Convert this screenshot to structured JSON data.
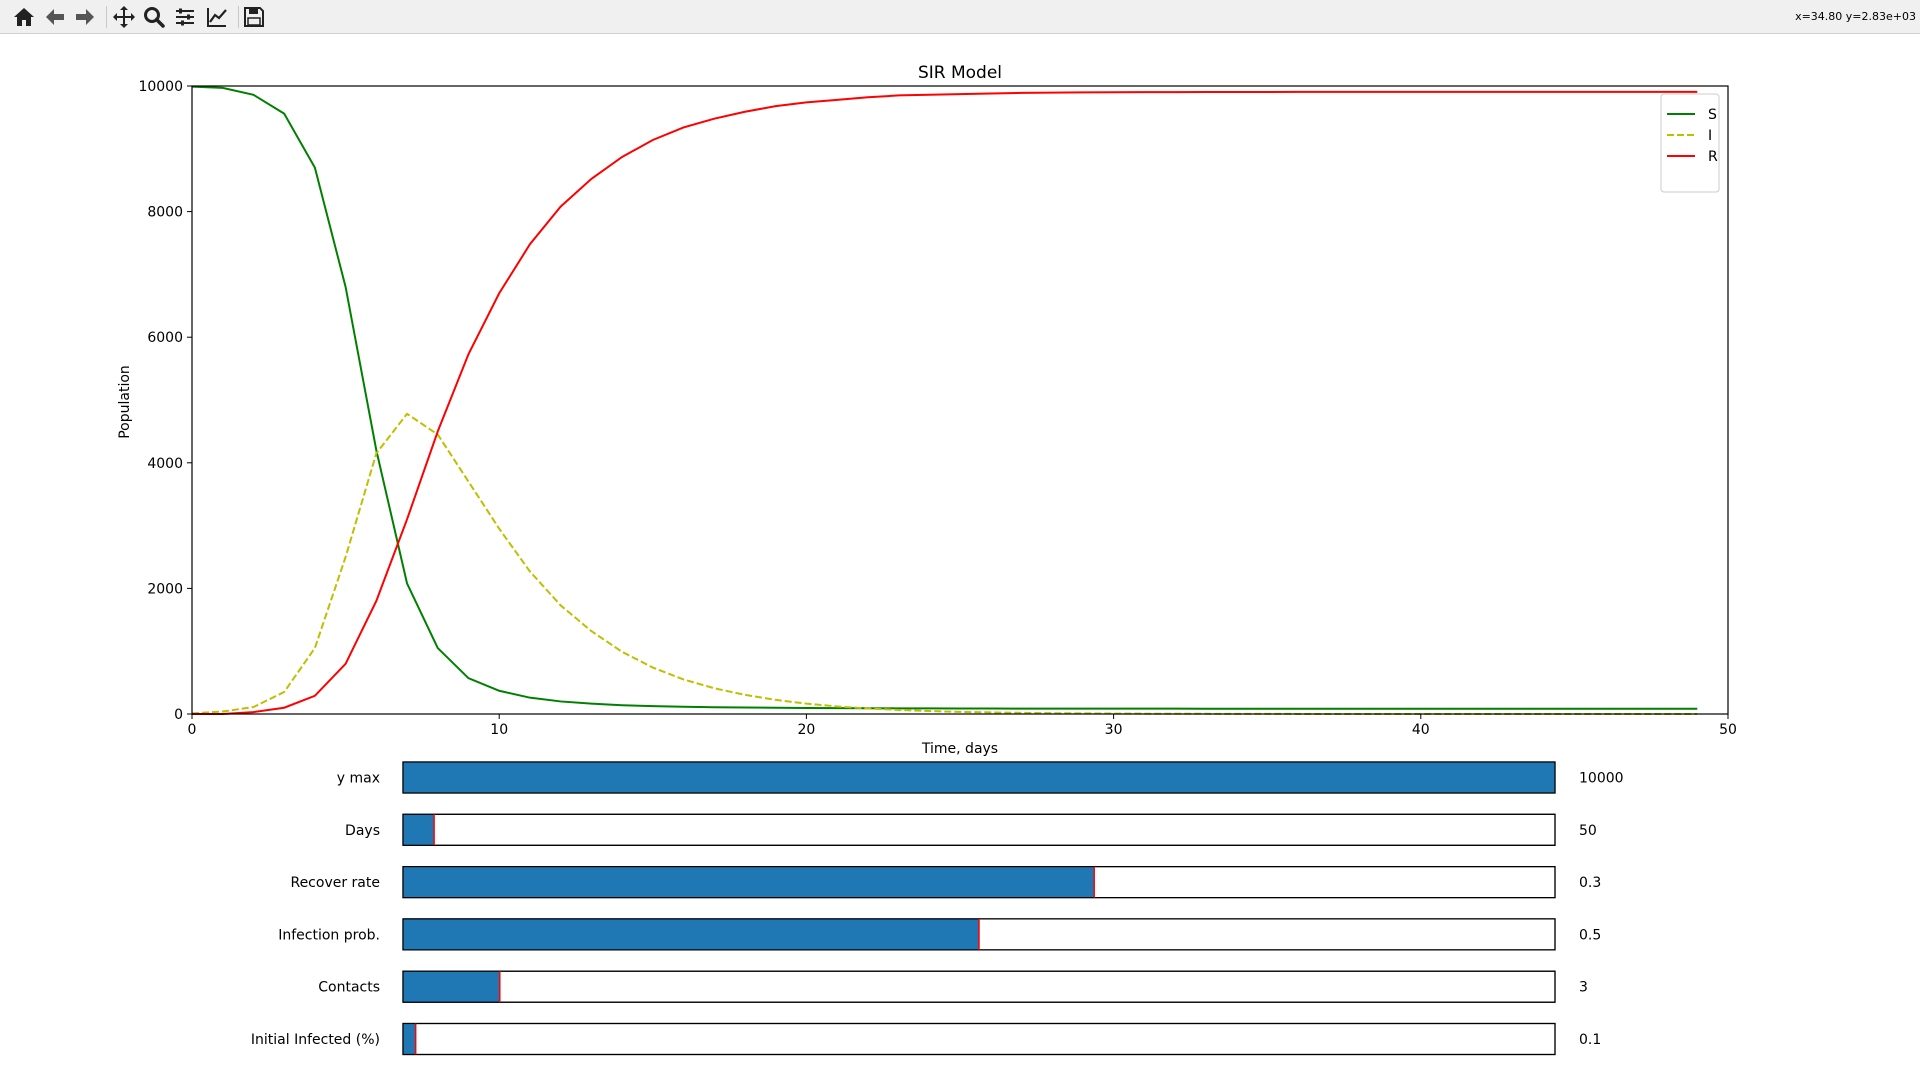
{
  "toolbar": {
    "buttons": [
      {
        "icon": "home-icon"
      },
      {
        "icon": "arrow-left-icon"
      },
      {
        "icon": "arrow-right-icon"
      },
      {
        "icon": "move-icon"
      },
      {
        "icon": "zoom-icon"
      },
      {
        "icon": "sliders-icon"
      },
      {
        "icon": "line-chart-icon"
      },
      {
        "icon": "save-icon"
      }
    ],
    "coord_readout": "x=34.80 y=2.83e+03"
  },
  "colors": {
    "S": "#008000",
    "I": "#bfbf00",
    "R": "#ff0000",
    "slider_fill": "#1f77b4",
    "slider_marker": "#ff0000"
  },
  "chart_data": {
    "type": "line",
    "title": "SIR Model",
    "xlabel": "Time, days",
    "ylabel": "Population",
    "xlim": [
      0,
      50
    ],
    "ylim": [
      0,
      10000
    ],
    "xticks": [
      0,
      10,
      20,
      30,
      40,
      50
    ],
    "yticks": [
      0,
      2000,
      4000,
      6000,
      8000,
      10000
    ],
    "legend": "top-right",
    "grid": false,
    "x": [
      0,
      1,
      2,
      3,
      4,
      5,
      6,
      7,
      8,
      9,
      10,
      11,
      12,
      13,
      14,
      15,
      16,
      17,
      18,
      19,
      20,
      21,
      22,
      23,
      24,
      25,
      26,
      27,
      28,
      29,
      30,
      31,
      32,
      33,
      34,
      35,
      36,
      37,
      38,
      39,
      40,
      41,
      42,
      43,
      44,
      45,
      46,
      47,
      48,
      49
    ],
    "series": [
      {
        "name": "S",
        "style": "solid",
        "values": [
          9990,
          9970,
          9860,
          9560,
          8700,
          6800,
          4200,
          2080,
          1050,
          570,
          370,
          260,
          200,
          165,
          140,
          125,
          115,
          108,
          103,
          99,
          96,
          94,
          92,
          90,
          89,
          88,
          87,
          86,
          86,
          85,
          85,
          85,
          85,
          84,
          84,
          84,
          84,
          84,
          84,
          84,
          84,
          84,
          84,
          84,
          84,
          84,
          84,
          84,
          84,
          84
        ]
      },
      {
        "name": "I",
        "style": "dashed",
        "values": [
          10,
          40,
          110,
          350,
          1050,
          2500,
          4150,
          4780,
          4450,
          3700,
          2950,
          2270,
          1730,
          1320,
          990,
          740,
          550,
          410,
          305,
          225,
          165,
          120,
          88,
          64,
          47,
          34,
          25,
          18,
          13,
          10,
          7,
          5,
          4,
          3,
          2,
          2,
          1,
          1,
          1,
          1,
          0,
          0,
          0,
          0,
          0,
          0,
          0,
          0,
          0,
          0
        ]
      },
      {
        "name": "R",
        "style": "solid",
        "values": [
          0,
          0,
          30,
          100,
          290,
          800,
          1800,
          3100,
          4500,
          5730,
          6700,
          7480,
          8080,
          8520,
          8870,
          9140,
          9340,
          9480,
          9590,
          9680,
          9740,
          9780,
          9820,
          9850,
          9860,
          9870,
          9880,
          9890,
          9895,
          9898,
          9900,
          9902,
          9903,
          9904,
          9905,
          9905,
          9906,
          9906,
          9906,
          9906,
          9906,
          9906,
          9906,
          9906,
          9906,
          9906,
          9906,
          9906,
          9906,
          9906
        ]
      }
    ]
  },
  "sliders": [
    {
      "label": "y max",
      "value_text": "10000",
      "fill": 1.0
    },
    {
      "label": "Days",
      "value_text": "50",
      "fill": 0.027
    },
    {
      "label": "Recover rate",
      "value_text": "0.3",
      "fill": 0.6
    },
    {
      "label": "Infection prob.",
      "value_text": "0.5",
      "fill": 0.5
    },
    {
      "label": "Contacts",
      "value_text": "3",
      "fill": 0.084
    },
    {
      "label": "Initial Infected (%)",
      "value_text": "0.1",
      "fill": 0.011
    }
  ]
}
